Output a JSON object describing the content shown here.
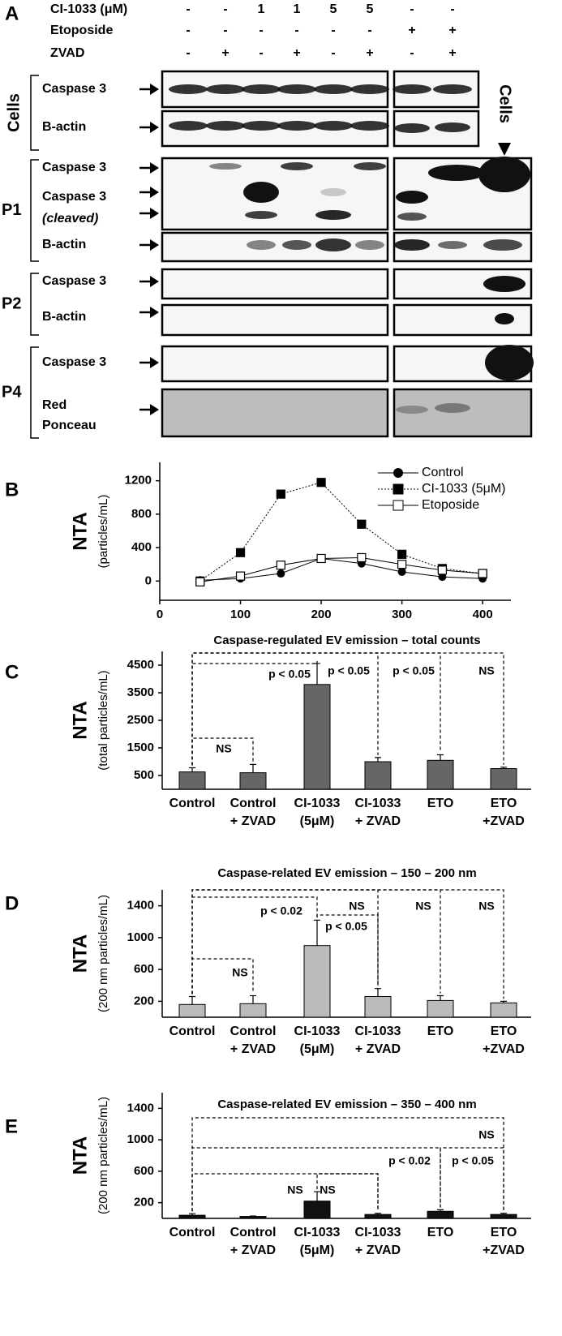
{
  "panel_a": {
    "label": "A",
    "conditions": [
      {
        "name": "CI-1033 (μM)",
        "values": [
          "-",
          "-",
          "1",
          "1",
          "5",
          "5",
          "-",
          "-"
        ]
      },
      {
        "name": "Etoposide",
        "values": [
          "-",
          "-",
          "-",
          "-",
          "-",
          "-",
          "+",
          "+"
        ]
      },
      {
        "name": "ZVAD",
        "values": [
          "-",
          "+",
          "-",
          "+",
          "-",
          "+",
          "-",
          "+"
        ]
      }
    ],
    "groups": [
      {
        "name": "Cells",
        "rows": [
          "Caspase 3",
          "B-actin"
        ]
      },
      {
        "name": "P1",
        "rows": [
          "Caspase 3",
          "Caspase 3",
          "(cleaved)",
          "B-actin"
        ]
      },
      {
        "name": "P2",
        "rows": [
          "Caspase 3",
          "B-actin"
        ]
      },
      {
        "name": "P4",
        "rows": [
          "Caspase 3",
          "Red",
          "Ponceau"
        ]
      }
    ],
    "cells_lane_label": "Cells"
  },
  "chart_data": [
    {
      "type": "line",
      "panel_label": "B",
      "ylabel": "NTA",
      "ylabel_sub": "(particles/mL)",
      "x": [
        50,
        100,
        150,
        200,
        250,
        300,
        350,
        400
      ],
      "series": [
        {
          "name": "Control",
          "color": "#000000",
          "marker": "filled-circle",
          "dash": "solid",
          "values": [
            10,
            30,
            90,
            270,
            210,
            110,
            50,
            30
          ]
        },
        {
          "name": "CI-1033 (5μM)",
          "color": "#000000",
          "marker": "filled-square",
          "dash": "dotted",
          "values": [
            0,
            340,
            1040,
            1180,
            680,
            320,
            150,
            90
          ]
        },
        {
          "name": "Etoposide",
          "color": "#000000",
          "marker": "open-square",
          "dash": "solid",
          "values": [
            -10,
            60,
            190,
            270,
            280,
            200,
            130,
            90
          ]
        }
      ],
      "xlim": [
        0,
        435
      ],
      "xticks": [
        0,
        100,
        200,
        300,
        400
      ],
      "ylim": [
        -230,
        1420
      ],
      "yticks": [
        0,
        400,
        800,
        1200
      ],
      "legend": "top-right"
    },
    {
      "type": "bar",
      "panel_label": "C",
      "title": "Caspase-regulated EV emission – total counts",
      "ylabel": "NTA",
      "ylabel_sub": "(total particles/mL)",
      "categories": [
        [
          "Control"
        ],
        [
          "Control",
          "+ ZVAD"
        ],
        [
          "CI-1033",
          "(5μM)"
        ],
        [
          "CI-1033",
          "+ ZVAD"
        ],
        [
          "ETO"
        ],
        [
          "ETO",
          "+ZVAD"
        ]
      ],
      "values": [
        630,
        600,
        3800,
        1000,
        1050,
        750
      ],
      "errors": [
        150,
        300,
        760,
        150,
        200,
        50
      ],
      "color": "#666666",
      "ylim": [
        0,
        5000
      ],
      "yticks": [
        500,
        1500,
        2500,
        3500,
        4500
      ],
      "annotations": [
        "NS",
        "p < 0.05",
        "p < 0.05",
        "p < 0.05",
        "NS"
      ]
    },
    {
      "type": "bar",
      "panel_label": "D",
      "title": "Caspase-related EV emission – 150 – 200 nm",
      "ylabel": "NTA",
      "ylabel_sub": "(200 nm particles/mL)",
      "categories": [
        [
          "Control"
        ],
        [
          "Control",
          "+ ZVAD"
        ],
        [
          "CI-1033",
          "(5μM)"
        ],
        [
          "CI-1033",
          "+ ZVAD"
        ],
        [
          "ETO"
        ],
        [
          "ETO",
          "+ZVAD"
        ]
      ],
      "values": [
        160,
        170,
        900,
        260,
        210,
        180
      ],
      "errors": [
        100,
        100,
        320,
        100,
        60,
        20
      ],
      "color": "#bbbbbb",
      "ylim": [
        0,
        1600
      ],
      "yticks": [
        200,
        600,
        1000,
        1400
      ],
      "annotations": [
        "NS",
        "p < 0.02",
        "p < 0.05",
        "NS",
        "NS",
        "NS"
      ]
    },
    {
      "type": "bar",
      "panel_label": "E",
      "title": "Caspase-related EV emission – 350 – 400 nm",
      "ylabel": "NTA",
      "ylabel_sub": "(200 nm particles/mL)",
      "categories": [
        [
          "Control"
        ],
        [
          "Control",
          "+ ZVAD"
        ],
        [
          "CI-1033",
          "(5μM)"
        ],
        [
          "CI-1033",
          "+ ZVAD"
        ],
        [
          "ETO"
        ],
        [
          "ETO",
          "+ZVAD"
        ]
      ],
      "values": [
        40,
        25,
        220,
        50,
        90,
        50
      ],
      "errors": [
        20,
        5,
        120,
        15,
        20,
        15
      ],
      "color": "#111111",
      "ylim": [
        0,
        1600
      ],
      "yticks": [
        200,
        600,
        1000,
        1400
      ],
      "annotations": [
        "NS",
        "NS",
        "p < 0.02",
        "p < 0.05",
        "NS"
      ]
    }
  ]
}
